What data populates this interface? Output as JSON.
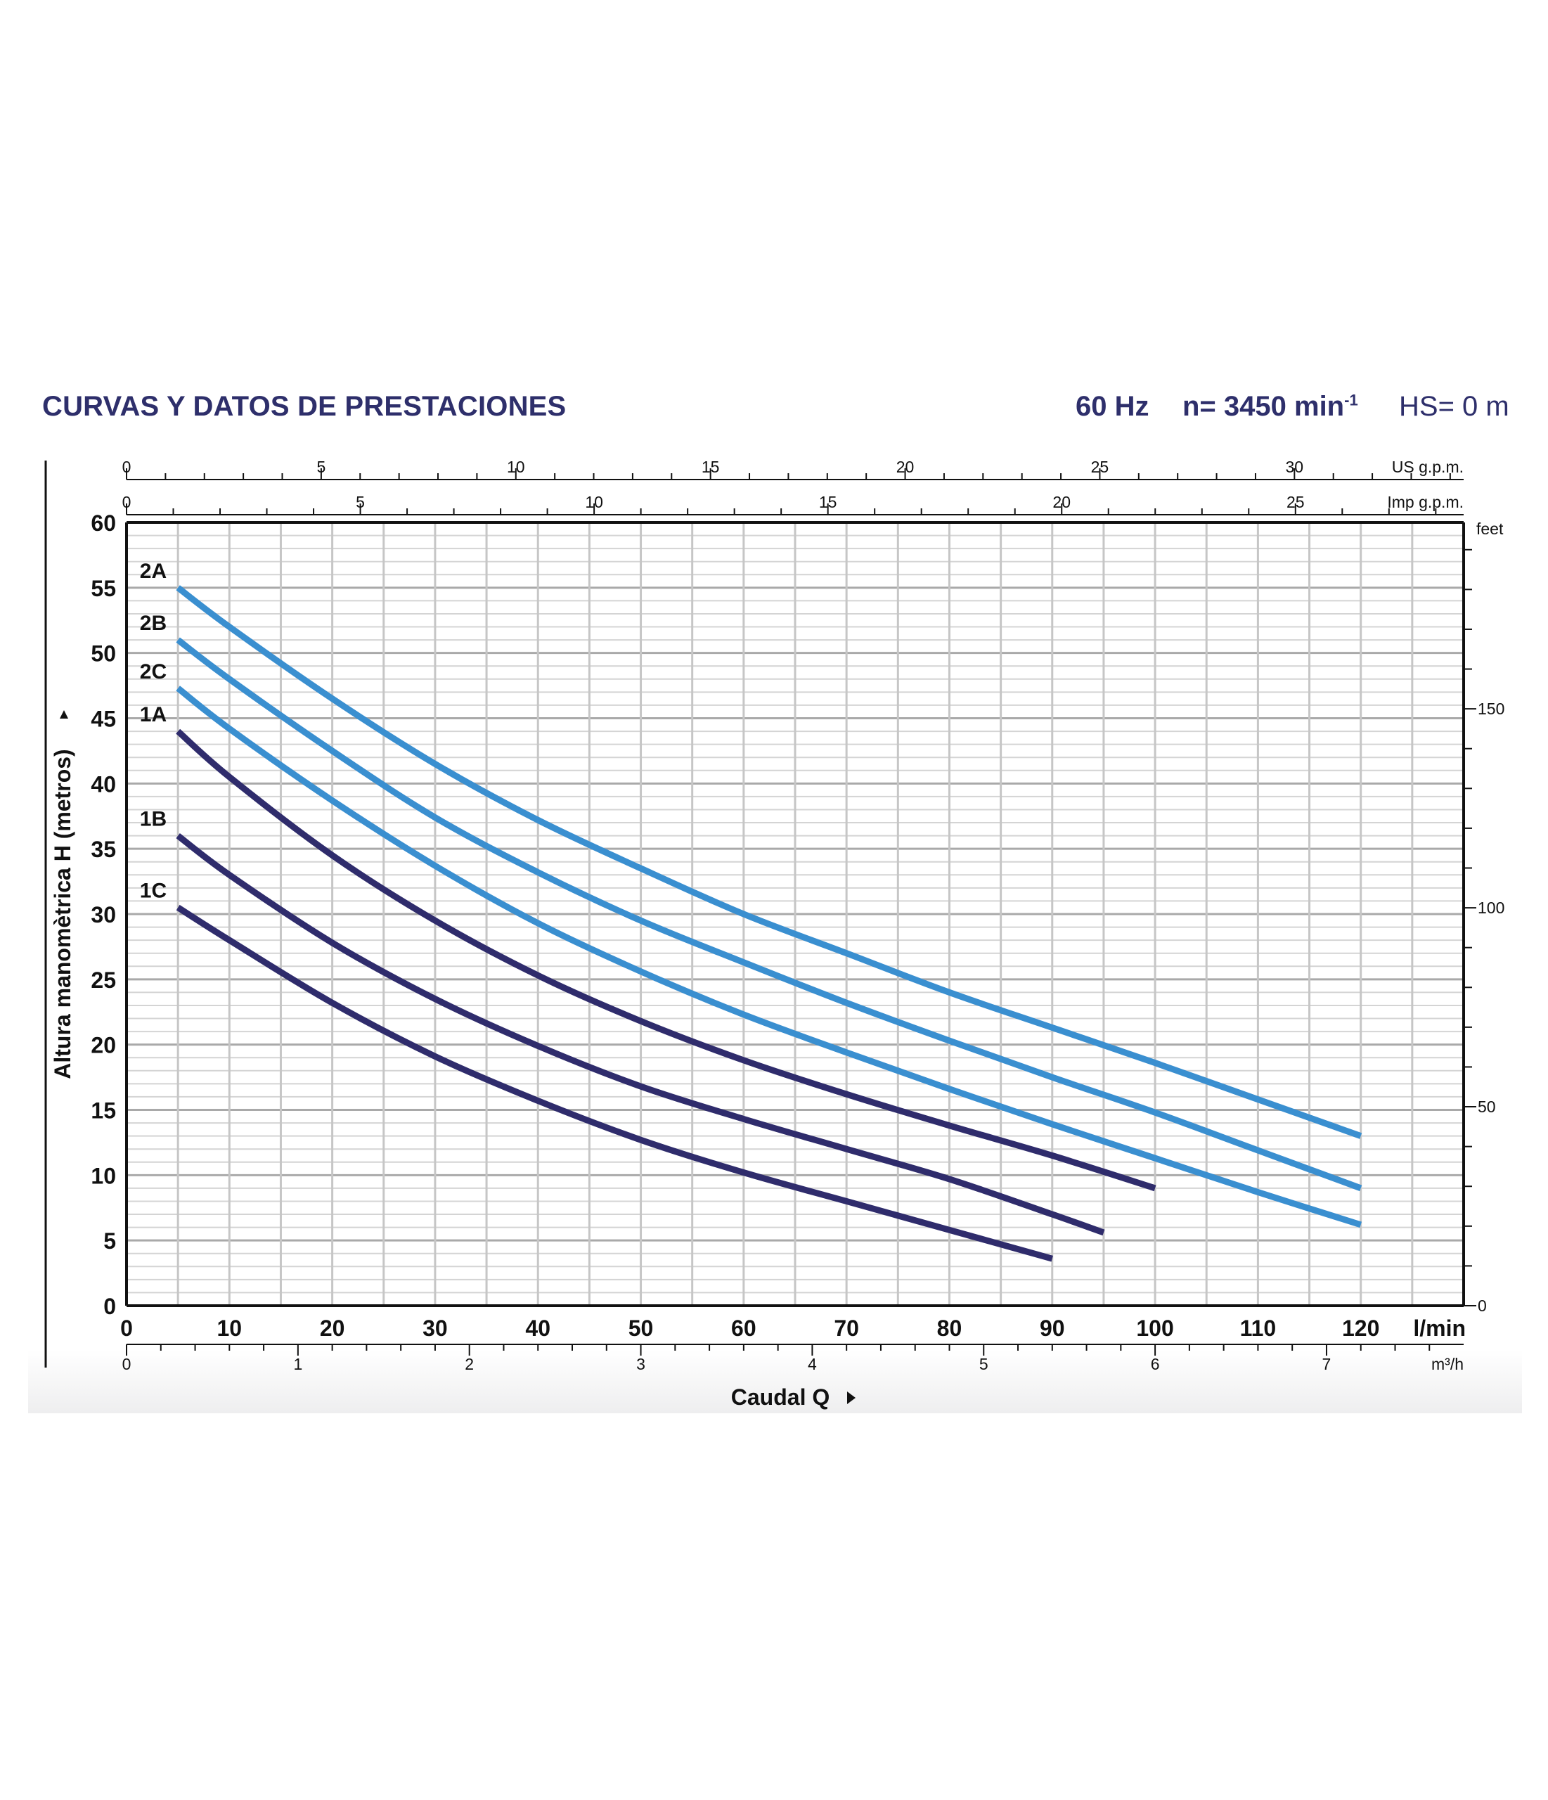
{
  "header": {
    "title": "CURVAS Y DATOS DE PRESTACIONES",
    "frequency": "60 Hz",
    "speed_label": "n= 3450 min",
    "speed_sup": "-1",
    "hs": "HS= 0 m"
  },
  "colors": {
    "curve_light": "#3a8fd0",
    "curve_dark": "#2f2c6c",
    "title": "#2e2f6b",
    "grid": "#c8c8c8",
    "axis": "#111111"
  },
  "chart_data": {
    "type": "line",
    "title": "CURVAS Y DATOS DE PRESTACIONES",
    "xlabel": "Caudal Q",
    "ylabel": "Altura manomètrica H (metros)",
    "x_unit": "l/min",
    "xlim": [
      0,
      130
    ],
    "ylim": [
      0,
      60
    ],
    "x_ticks": [
      0,
      10,
      20,
      30,
      40,
      50,
      60,
      70,
      80,
      90,
      100,
      110,
      120
    ],
    "y_ticks": [
      0,
      5,
      10,
      15,
      20,
      25,
      30,
      35,
      40,
      45,
      50,
      55,
      60
    ],
    "grid": true,
    "secondary_axes": {
      "us_gpm": {
        "label": "US g.p.m.",
        "ticks": [
          0,
          5,
          10,
          15,
          20,
          25,
          30
        ]
      },
      "imp_gpm": {
        "label": "Imp g.p.m.",
        "ticks": [
          0,
          5,
          10,
          15,
          20,
          25
        ]
      },
      "m3h": {
        "label": "m³/h",
        "ticks": [
          0,
          1,
          2,
          3,
          4,
          5,
          6,
          7
        ]
      },
      "feet": {
        "label": "feet",
        "ticks": [
          0,
          50,
          100,
          150
        ]
      }
    },
    "series": [
      {
        "name": "2A",
        "color": "curve_light",
        "x": [
          5,
          10,
          20,
          30,
          40,
          50,
          60,
          70,
          80,
          90,
          100,
          110,
          120
        ],
        "y": [
          55,
          52,
          46.5,
          41.5,
          37.2,
          33.5,
          30,
          27,
          24,
          21.3,
          18.6,
          15.8,
          13
        ]
      },
      {
        "name": "2B",
        "color": "curve_light",
        "x": [
          5,
          10,
          20,
          30,
          40,
          50,
          60,
          70,
          80,
          90,
          100,
          110,
          120
        ],
        "y": [
          51,
          48,
          42.5,
          37.4,
          33.2,
          29.5,
          26.3,
          23.2,
          20.3,
          17.5,
          14.8,
          11.9,
          9
        ]
      },
      {
        "name": "2C",
        "color": "curve_light",
        "x": [
          5,
          10,
          20,
          30,
          40,
          50,
          60,
          70,
          80,
          90,
          100,
          110,
          120
        ],
        "y": [
          47.3,
          44.2,
          38.7,
          33.7,
          29.3,
          25.6,
          22.3,
          19.4,
          16.6,
          13.9,
          11.3,
          8.7,
          6.2
        ]
      },
      {
        "name": "1A",
        "color": "curve_dark",
        "x": [
          5,
          10,
          20,
          30,
          40,
          50,
          60,
          70,
          80,
          90,
          100
        ],
        "y": [
          44,
          40.5,
          34.5,
          29.5,
          25.3,
          21.8,
          18.8,
          16.2,
          13.8,
          11.5,
          9
        ]
      },
      {
        "name": "1B",
        "color": "curve_dark",
        "x": [
          5,
          10,
          20,
          30,
          40,
          50,
          60,
          70,
          80,
          90,
          95
        ],
        "y": [
          36,
          33,
          27.8,
          23.5,
          19.9,
          16.8,
          14.3,
          12,
          9.7,
          7,
          5.6
        ]
      },
      {
        "name": "1C",
        "color": "curve_dark",
        "x": [
          5,
          10,
          20,
          30,
          40,
          50,
          60,
          70,
          80,
          90
        ],
        "y": [
          30.5,
          28,
          23.2,
          19.1,
          15.7,
          12.7,
          10.2,
          8,
          5.8,
          3.6
        ]
      }
    ]
  }
}
